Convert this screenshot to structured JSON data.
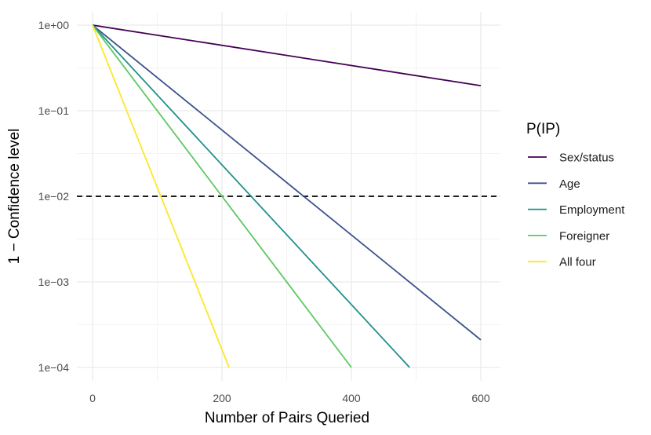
{
  "chart_data": {
    "type": "line",
    "y_scale": "log10",
    "title": "",
    "xlabel": "Number of Pairs Queried",
    "ylabel": "1 − Confidence level",
    "xlim": [
      -15,
      630
    ],
    "ylim": [
      0.0001,
      1
    ],
    "x_ticks": [
      0,
      200,
      400,
      600
    ],
    "x_tick_labels": [
      "0",
      "200",
      "400",
      "600"
    ],
    "y_ticks": [
      1,
      0.1,
      0.01,
      0.001,
      0.0001
    ],
    "y_tick_labels": [
      "1e+00",
      "1e−01",
      "1e−02",
      "1e−03",
      "1e−04"
    ],
    "grid": true,
    "legend_title": "P(IP)",
    "legend_position": "right",
    "reference_line": {
      "y": 0.01,
      "style": "dashed",
      "color": "#000000"
    },
    "series": [
      {
        "name": "Sex/status",
        "color": "#440154",
        "x": [
          0,
          600
        ],
        "y": [
          1,
          0.196
        ]
      },
      {
        "name": "Age",
        "color": "#3B528B",
        "x": [
          0,
          600
        ],
        "y": [
          1,
          0.00021
        ]
      },
      {
        "name": "Employment",
        "color": "#21908C",
        "x": [
          0,
          490
        ],
        "y": [
          1,
          0.0001
        ]
      },
      {
        "name": "Foreigner",
        "color": "#5DC863",
        "x": [
          0,
          400
        ],
        "y": [
          1,
          0.0001
        ]
      },
      {
        "name": "All four",
        "color": "#FDE725",
        "x": [
          0,
          211
        ],
        "y": [
          1,
          0.0001
        ]
      }
    ]
  }
}
